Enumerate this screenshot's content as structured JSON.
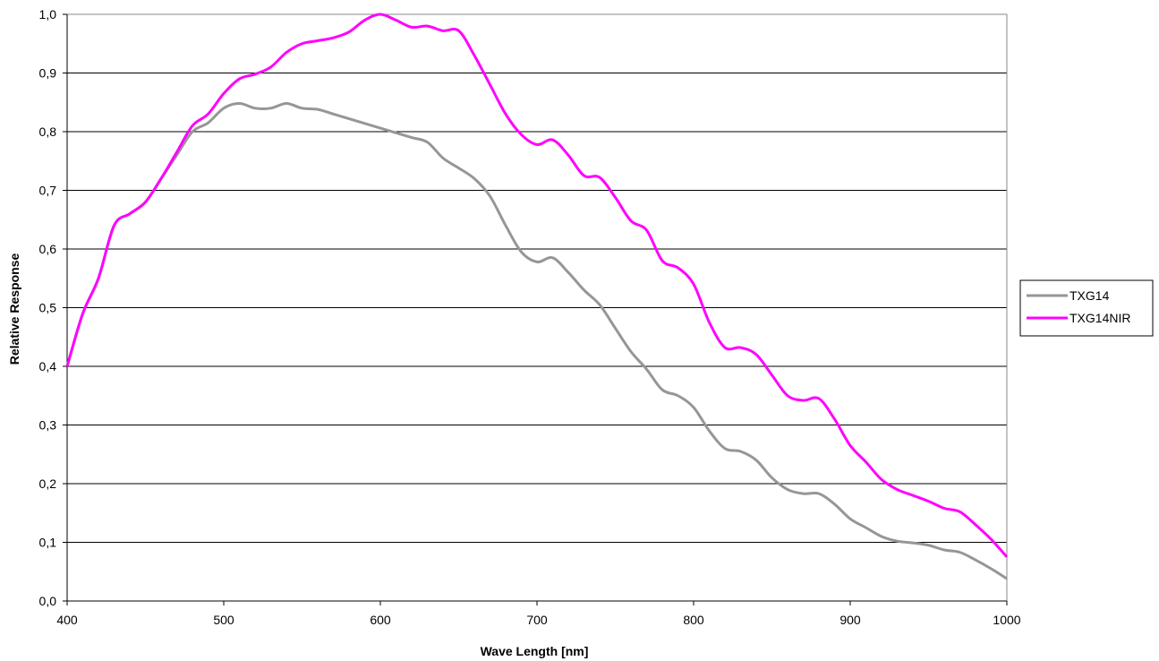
{
  "chart_data": {
    "type": "line",
    "title": "",
    "xlabel": "Wave Length [nm]",
    "ylabel": "Relative Response",
    "xlim": [
      400,
      1000
    ],
    "ylim": [
      0,
      1.0
    ],
    "xticks": [
      400,
      500,
      600,
      700,
      800,
      900,
      1000
    ],
    "xtick_labels": [
      "400",
      "500",
      "600",
      "700",
      "800",
      "900",
      "1000"
    ],
    "yticks": [
      0,
      0.1,
      0.2,
      0.3,
      0.4,
      0.5,
      0.6,
      0.7,
      0.8,
      0.9,
      1.0
    ],
    "ytick_labels": [
      "0,0",
      "0,1",
      "0,2",
      "0,3",
      "0,4",
      "0,5",
      "0,6",
      "0,7",
      "0,8",
      "0,9",
      "1,0"
    ],
    "grid": "horizontal",
    "legend_position": "right",
    "series": [
      {
        "name": "TXG14",
        "color": "#969696",
        "x": [
          400,
          410,
          420,
          430,
          440,
          450,
          460,
          470,
          480,
          490,
          500,
          510,
          520,
          530,
          540,
          550,
          560,
          570,
          580,
          590,
          600,
          610,
          620,
          630,
          640,
          650,
          660,
          670,
          680,
          690,
          700,
          710,
          720,
          730,
          740,
          750,
          760,
          770,
          780,
          790,
          800,
          810,
          820,
          830,
          840,
          850,
          860,
          870,
          880,
          890,
          900,
          910,
          920,
          930,
          940,
          950,
          960,
          970,
          980,
          990,
          1000
        ],
        "y": [
          0.4,
          0.49,
          0.55,
          0.64,
          0.66,
          0.68,
          0.72,
          0.76,
          0.8,
          0.815,
          0.84,
          0.848,
          0.84,
          0.84,
          0.848,
          0.84,
          0.838,
          0.83,
          0.822,
          0.814,
          0.806,
          0.798,
          0.79,
          0.782,
          0.755,
          0.738,
          0.72,
          0.69,
          0.64,
          0.595,
          0.578,
          0.585,
          0.56,
          0.53,
          0.505,
          0.465,
          0.425,
          0.395,
          0.36,
          0.35,
          0.33,
          0.29,
          0.26,
          0.255,
          0.24,
          0.21,
          0.19,
          0.183,
          0.183,
          0.165,
          0.14,
          0.125,
          0.11,
          0.102,
          0.099,
          0.095,
          0.087,
          0.083,
          0.07,
          0.055,
          0.038
        ]
      },
      {
        "name": "TXG14NIR",
        "color": "#ff00ff",
        "x": [
          400,
          410,
          420,
          430,
          440,
          450,
          460,
          470,
          480,
          490,
          500,
          510,
          520,
          530,
          540,
          550,
          560,
          570,
          580,
          590,
          600,
          610,
          620,
          630,
          640,
          650,
          660,
          670,
          680,
          690,
          700,
          710,
          720,
          730,
          740,
          750,
          760,
          770,
          780,
          790,
          800,
          810,
          820,
          830,
          840,
          850,
          860,
          870,
          880,
          890,
          900,
          910,
          920,
          930,
          940,
          950,
          960,
          970,
          980,
          990,
          1000
        ],
        "y": [
          0.4,
          0.49,
          0.55,
          0.64,
          0.66,
          0.68,
          0.72,
          0.765,
          0.81,
          0.83,
          0.865,
          0.89,
          0.898,
          0.91,
          0.935,
          0.95,
          0.955,
          0.96,
          0.97,
          0.99,
          1.0,
          0.99,
          0.978,
          0.98,
          0.972,
          0.972,
          0.93,
          0.88,
          0.83,
          0.795,
          0.778,
          0.786,
          0.76,
          0.725,
          0.722,
          0.688,
          0.648,
          0.632,
          0.58,
          0.568,
          0.54,
          0.475,
          0.432,
          0.432,
          0.42,
          0.385,
          0.35,
          0.342,
          0.345,
          0.31,
          0.265,
          0.237,
          0.207,
          0.19,
          0.18,
          0.17,
          0.158,
          0.152,
          0.13,
          0.105,
          0.075
        ]
      }
    ]
  }
}
